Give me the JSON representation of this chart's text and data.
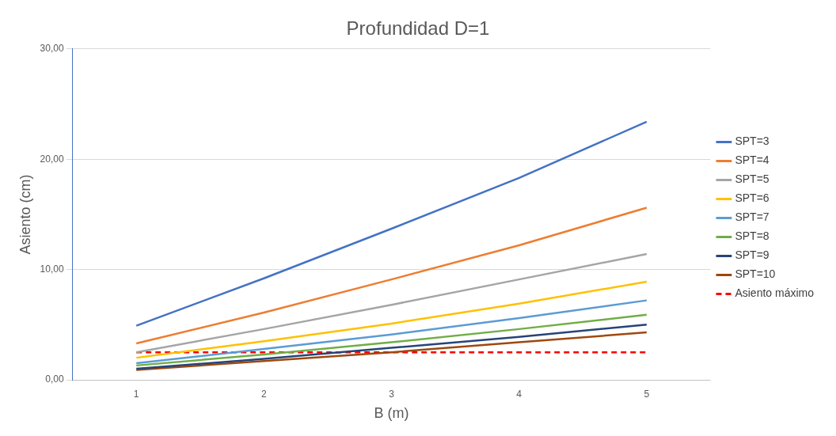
{
  "chart_data": {
    "type": "line",
    "title": "Profundidad D=1",
    "xlabel": "B (m)",
    "ylabel": "Asiento (cm)",
    "categories": [
      "1",
      "2",
      "3",
      "4",
      "5"
    ],
    "series": [
      {
        "name": "SPT=3",
        "color": "#4472c4",
        "values": [
          4.9,
          9.2,
          13.7,
          18.3,
          23.4
        ]
      },
      {
        "name": "SPT=4",
        "color": "#ed7d31",
        "values": [
          3.3,
          6.1,
          9.1,
          12.2,
          15.6
        ]
      },
      {
        "name": "SPT=5",
        "color": "#a5a5a5",
        "values": [
          2.5,
          4.6,
          6.8,
          9.1,
          11.4
        ]
      },
      {
        "name": "SPT=6",
        "color": "#ffc000",
        "values": [
          2.0,
          3.5,
          5.1,
          6.9,
          8.9
        ]
      },
      {
        "name": "SPT=7",
        "color": "#5b9bd5",
        "values": [
          1.5,
          2.8,
          4.1,
          5.6,
          7.2
        ]
      },
      {
        "name": "SPT=8",
        "color": "#70ad47",
        "values": [
          1.3,
          2.3,
          3.4,
          4.6,
          5.9
        ]
      },
      {
        "name": "SPT=9",
        "color": "#264478",
        "values": [
          1.0,
          1.9,
          2.9,
          3.9,
          5.0
        ]
      },
      {
        "name": "SPT=10",
        "color": "#9e480e",
        "values": [
          0.9,
          1.7,
          2.5,
          3.4,
          4.3
        ]
      },
      {
        "name": "Asiento máximo",
        "color": "#ff0000",
        "line_style": "dashed",
        "values": [
          2.5,
          2.5,
          2.5,
          2.5,
          2.5
        ]
      }
    ],
    "ylim": [
      0,
      30
    ],
    "yticks": [
      {
        "value": 0,
        "label": "0,00"
      },
      {
        "value": 10,
        "label": "10,00"
      },
      {
        "value": 20,
        "label": "20,00"
      },
      {
        "value": 30,
        "label": "30,00"
      }
    ],
    "grid": "y",
    "legend": "right",
    "marker": "none"
  }
}
